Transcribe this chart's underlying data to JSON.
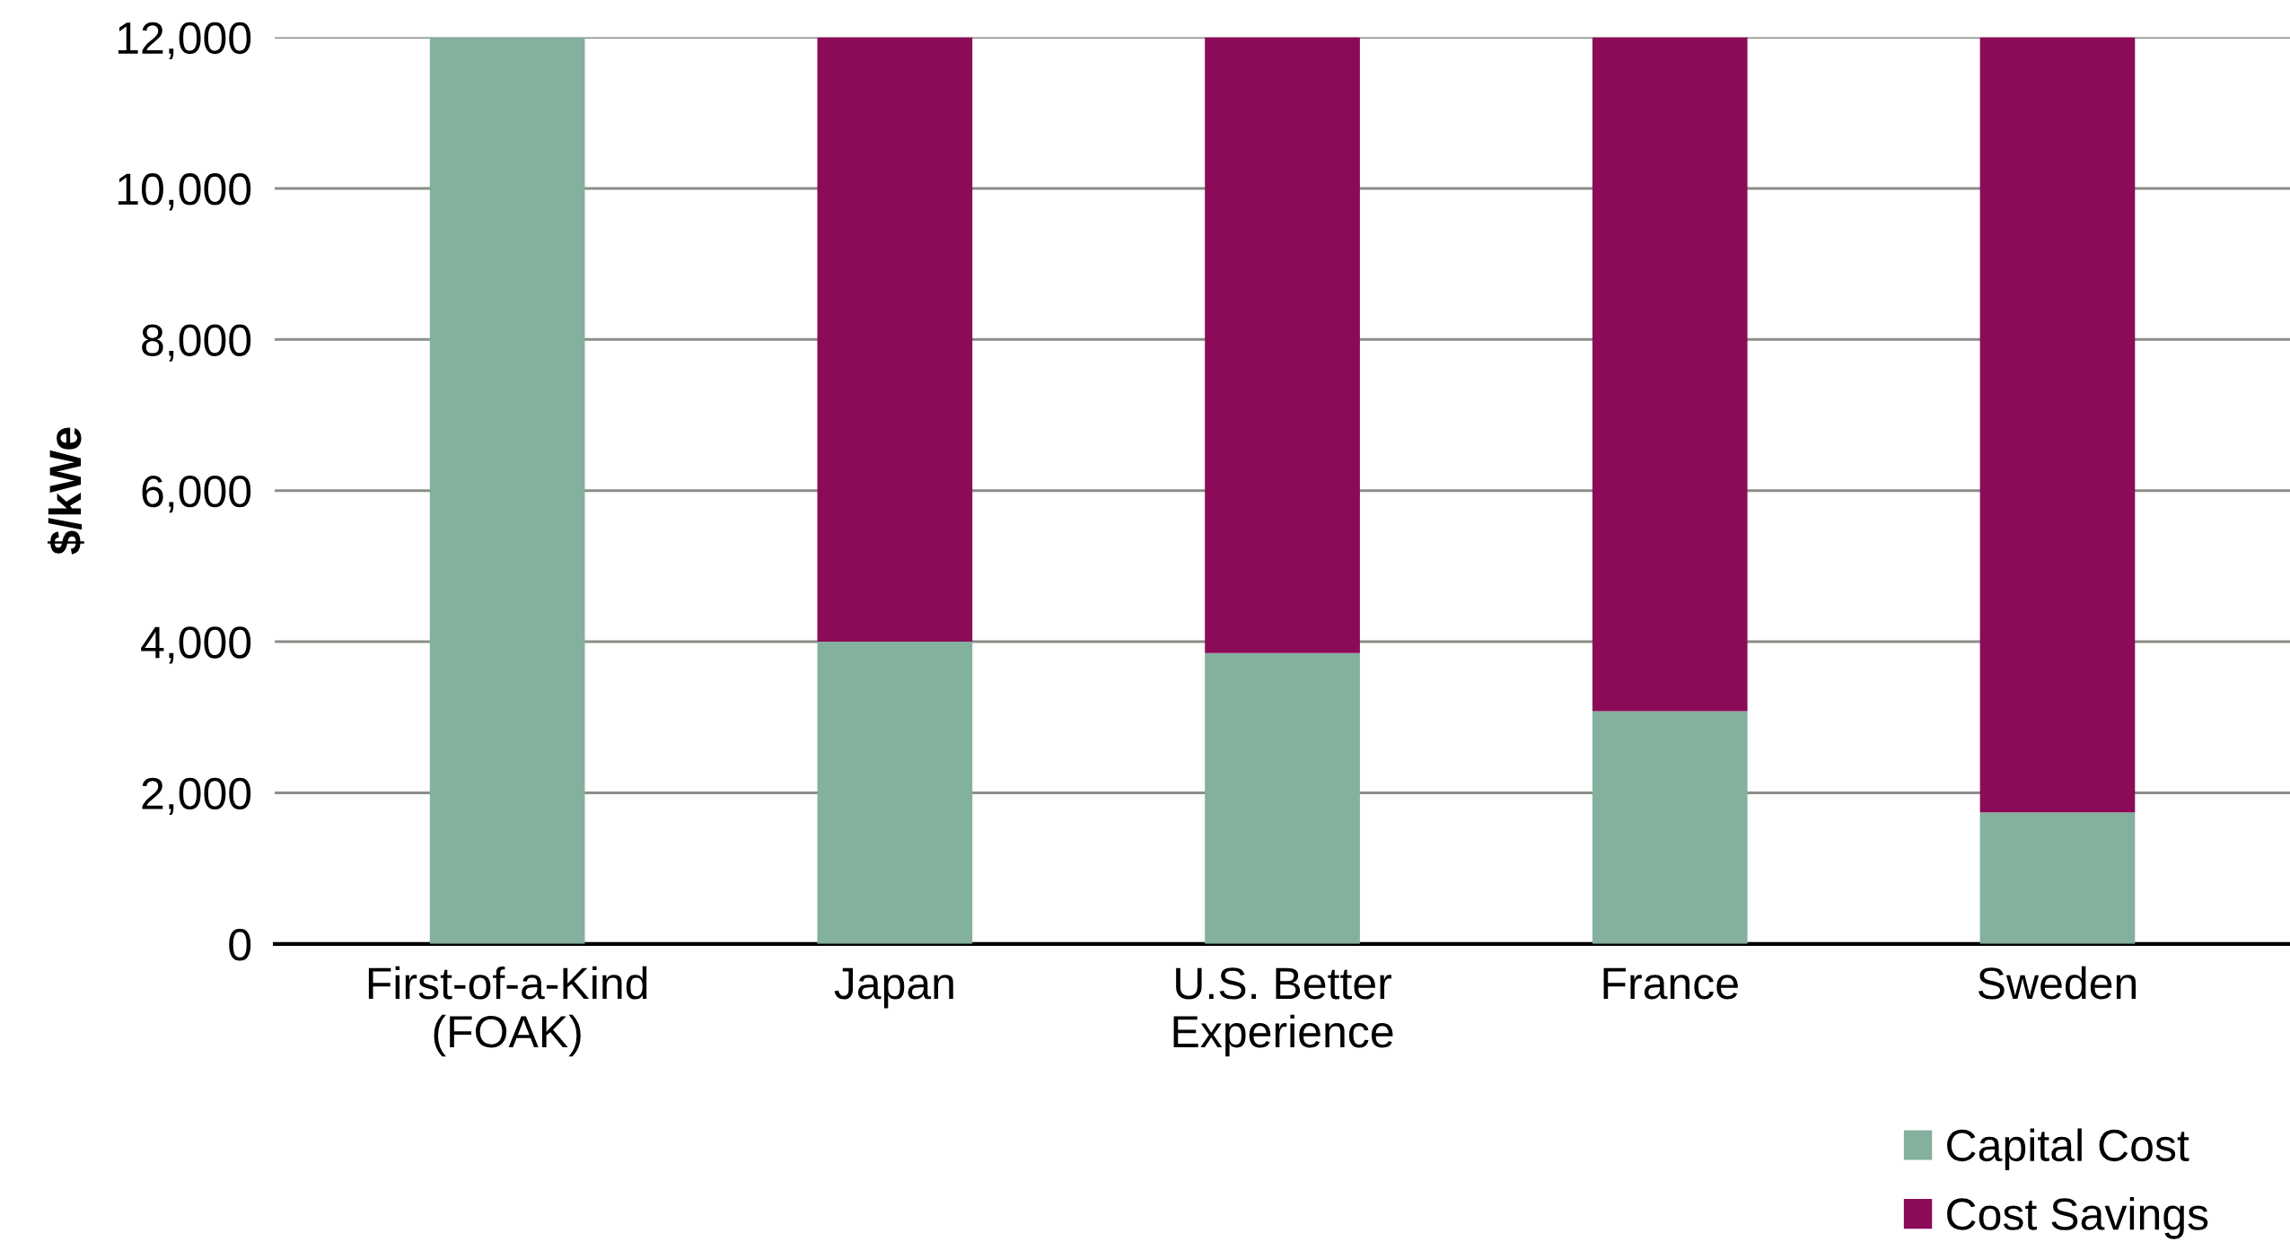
{
  "chart_data": {
    "type": "bar",
    "stacked": true,
    "ylabel": "$/kWe",
    "categories": [
      "First-of-a-Kind\n(FOAK)",
      "Japan",
      "U.S. Better\nExperience",
      "France",
      "Sweden"
    ],
    "series": [
      {
        "name": "Capital Cost",
        "color": "#84b09e",
        "values": [
          12000,
          4000,
          3850,
          3080,
          1740
        ]
      },
      {
        "name": "Cost Savings",
        "color": "#8c0b58",
        "values": [
          0,
          8000,
          8150,
          8920,
          10260
        ]
      }
    ],
    "ylim": [
      0,
      12000
    ],
    "yticks": [
      {
        "value": 0,
        "label": "0"
      },
      {
        "value": 2000,
        "label": "2,000"
      },
      {
        "value": 4000,
        "label": "4,000"
      },
      {
        "value": 6000,
        "label": "6,000"
      },
      {
        "value": 8000,
        "label": "8,000"
      },
      {
        "value": 10000,
        "label": "10,000"
      },
      {
        "value": 12000,
        "label": "12,000"
      }
    ],
    "grid": "y",
    "legend": "bottom right"
  }
}
